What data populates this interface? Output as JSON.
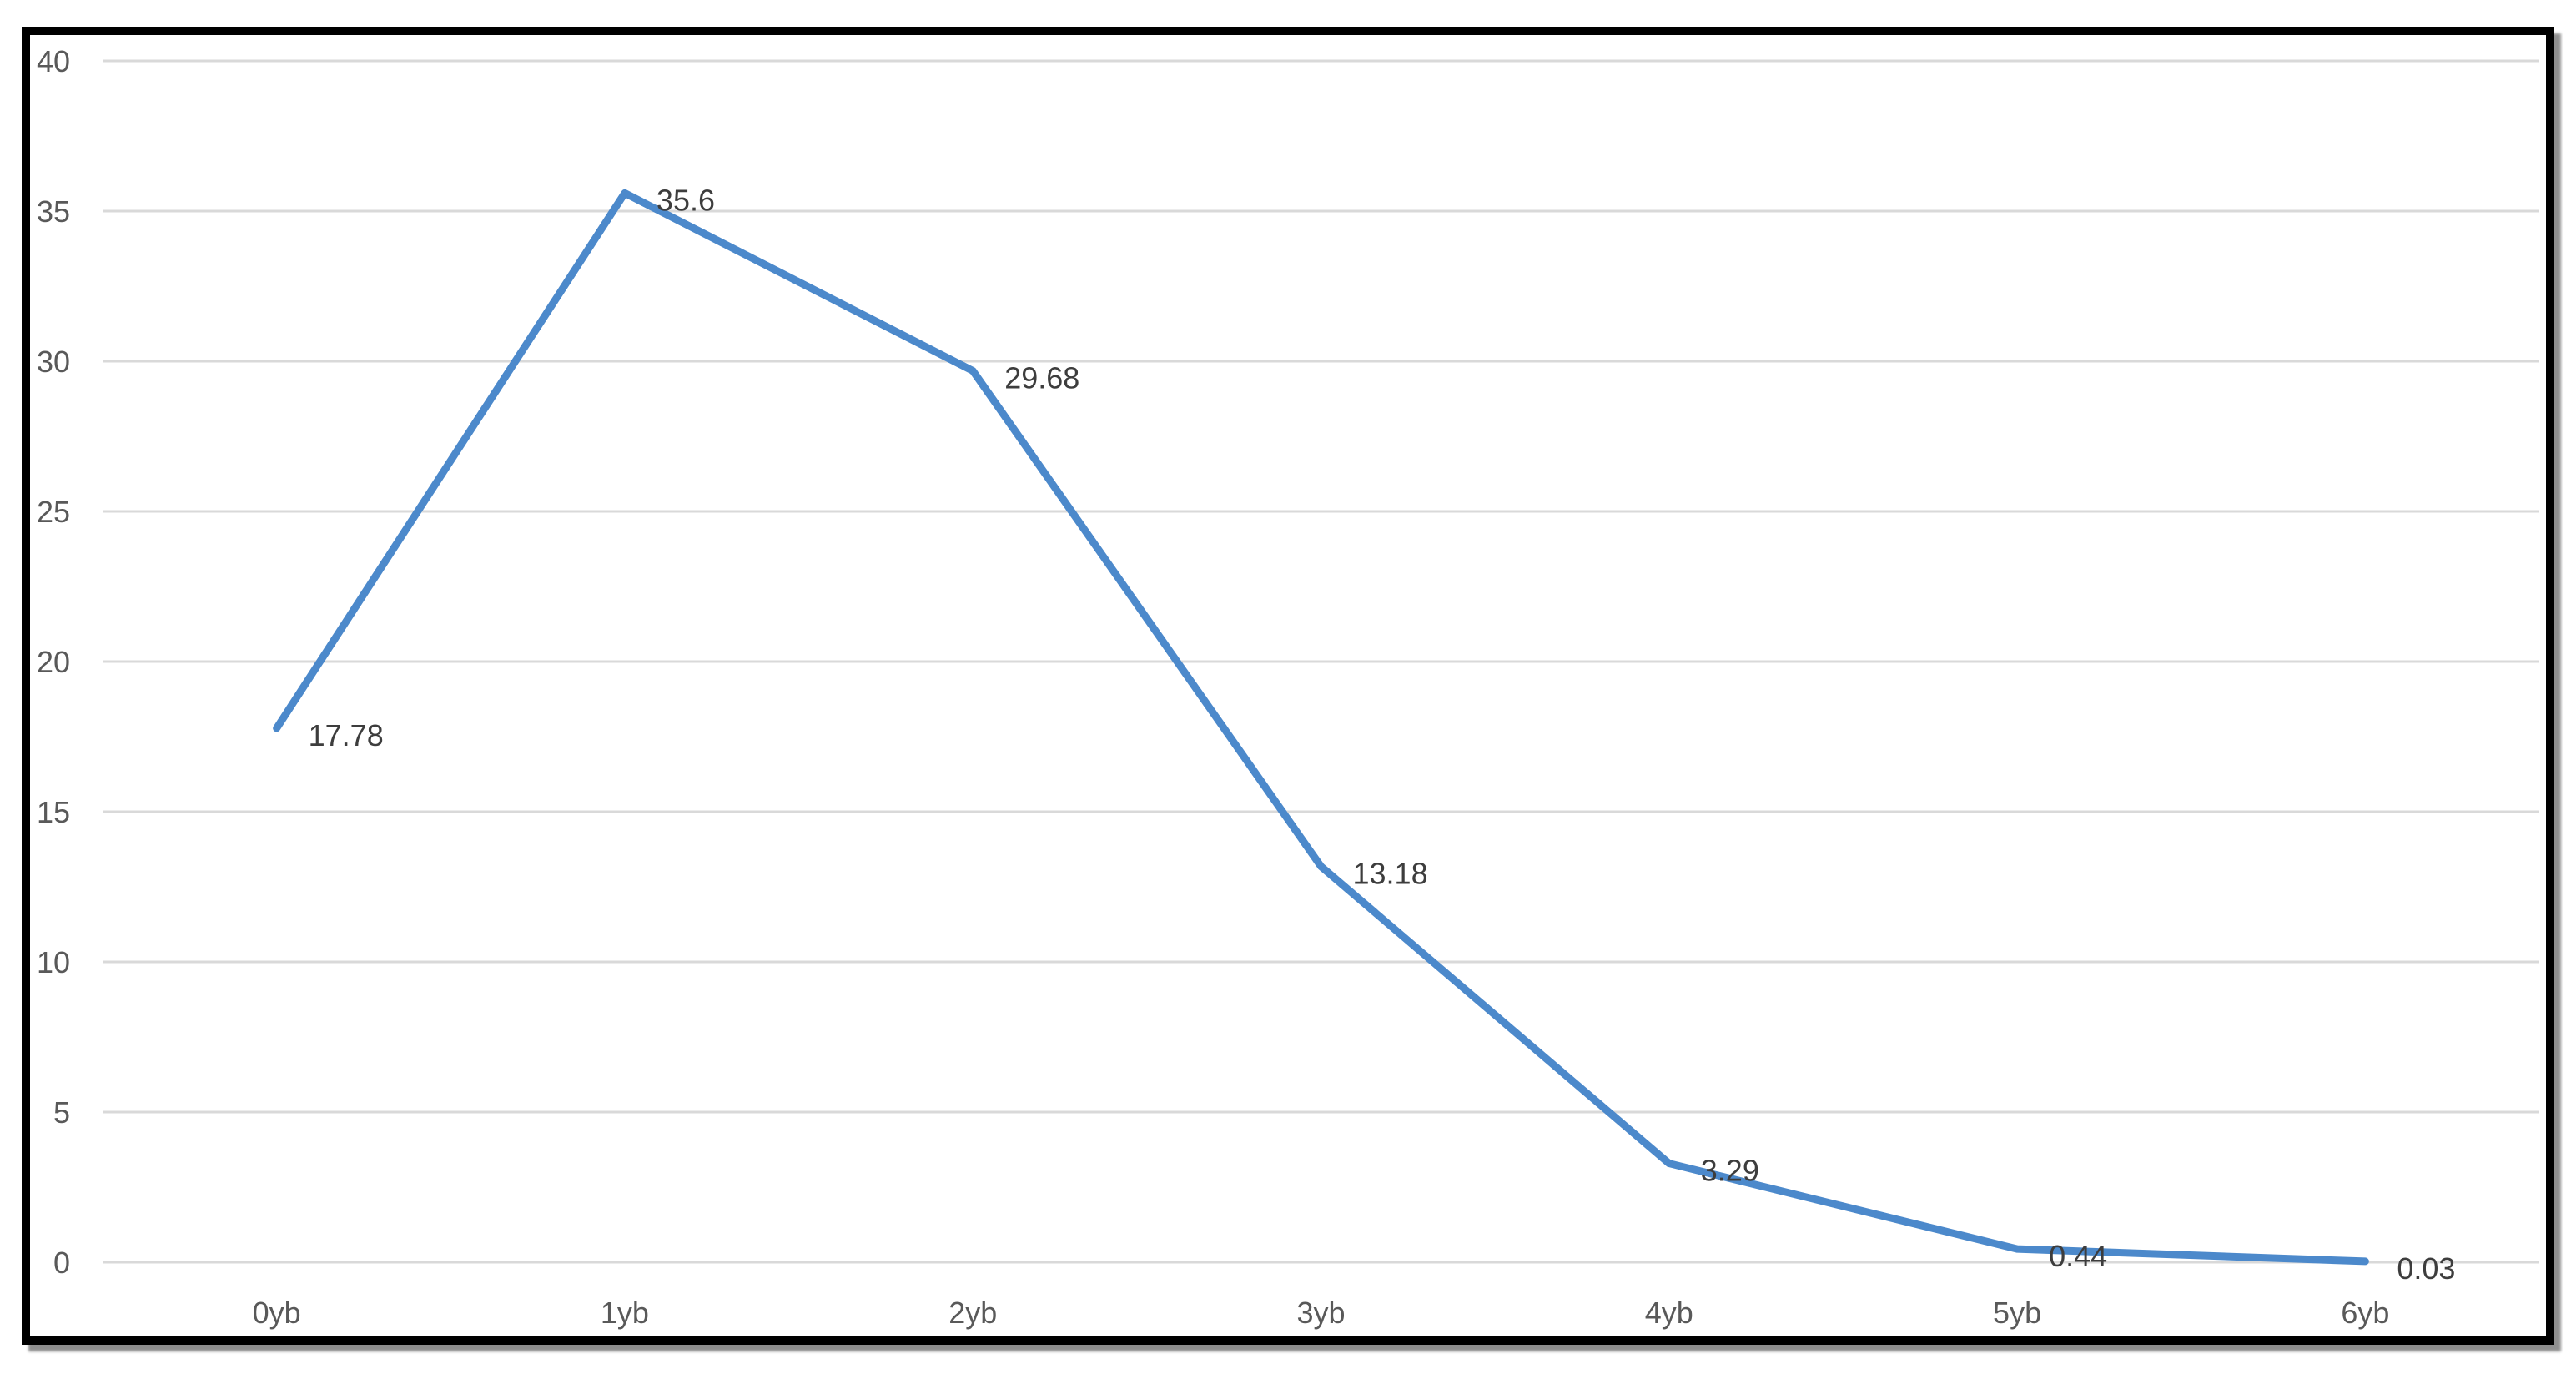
{
  "chart_data": {
    "type": "line",
    "title": "",
    "xlabel": "",
    "ylabel": "",
    "categories": [
      "0yb",
      "1yb",
      "2yb",
      "3yb",
      "4yb",
      "5yb",
      "6yb"
    ],
    "values": [
      17.78,
      35.6,
      29.68,
      13.18,
      3.29,
      0.44,
      0.03
    ],
    "data_labels": [
      "17.78",
      "35.6",
      "29.68",
      "13.18",
      "3.29",
      "0.44",
      "0.03"
    ],
    "ylim": [
      0,
      40
    ],
    "y_ticks": [
      0,
      5,
      10,
      15,
      20,
      25,
      30,
      35,
      40
    ],
    "y_tick_labels": [
      "0",
      "5",
      "10",
      "15",
      "20",
      "25",
      "30",
      "35",
      "40"
    ],
    "grid": "horizontal",
    "legend": "none",
    "colors": {
      "line": "#4c89cb",
      "gridline": "#d9d9d9",
      "axis_text": "#595959",
      "data_label_text": "#3d3d3d",
      "frame_border": "#000000",
      "background": "#ffffff"
    }
  }
}
